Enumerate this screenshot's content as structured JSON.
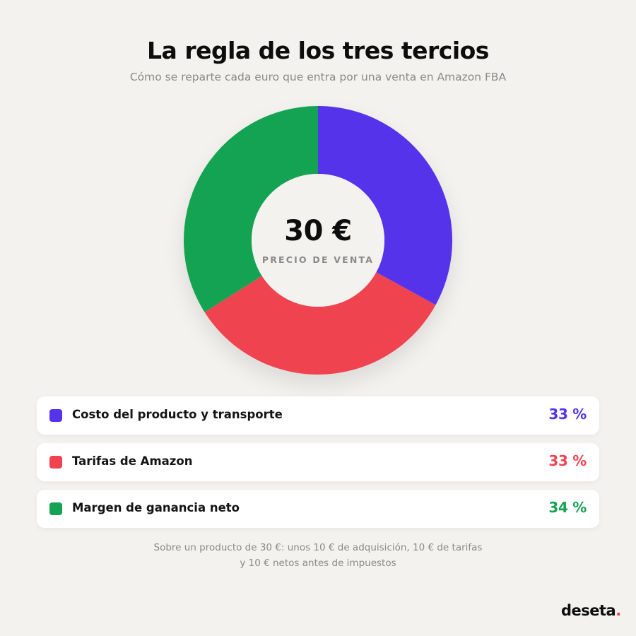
{
  "header": {
    "title": "La regla de los tres tercios",
    "subtitle": "Cómo se reparte cada euro que entra por una venta en Amazon FBA"
  },
  "center": {
    "value": "30 €",
    "label": "PRECIO DE VENTA"
  },
  "chart_data": {
    "type": "pie",
    "donut": true,
    "categories": [
      "Costo del producto y transporte",
      "Tarifas de Amazon",
      "Margen de ganancia neto"
    ],
    "values": [
      33,
      33,
      34
    ],
    "value_labels": [
      "33 %",
      "33 %",
      "34 %"
    ],
    "colors": [
      "#5533ea",
      "#ef4350",
      "#14a352"
    ],
    "start": "top, clockwise",
    "legend": "below"
  },
  "footnote": {
    "line1": "Sobre un producto de 30 €: unos 10 € de adquisición, 10 € de tarifas",
    "line2": "y 10 € netos antes de impuestos"
  },
  "brand": {
    "name": "deseta",
    "dot": ".",
    "dot_color": "#ef4350"
  }
}
